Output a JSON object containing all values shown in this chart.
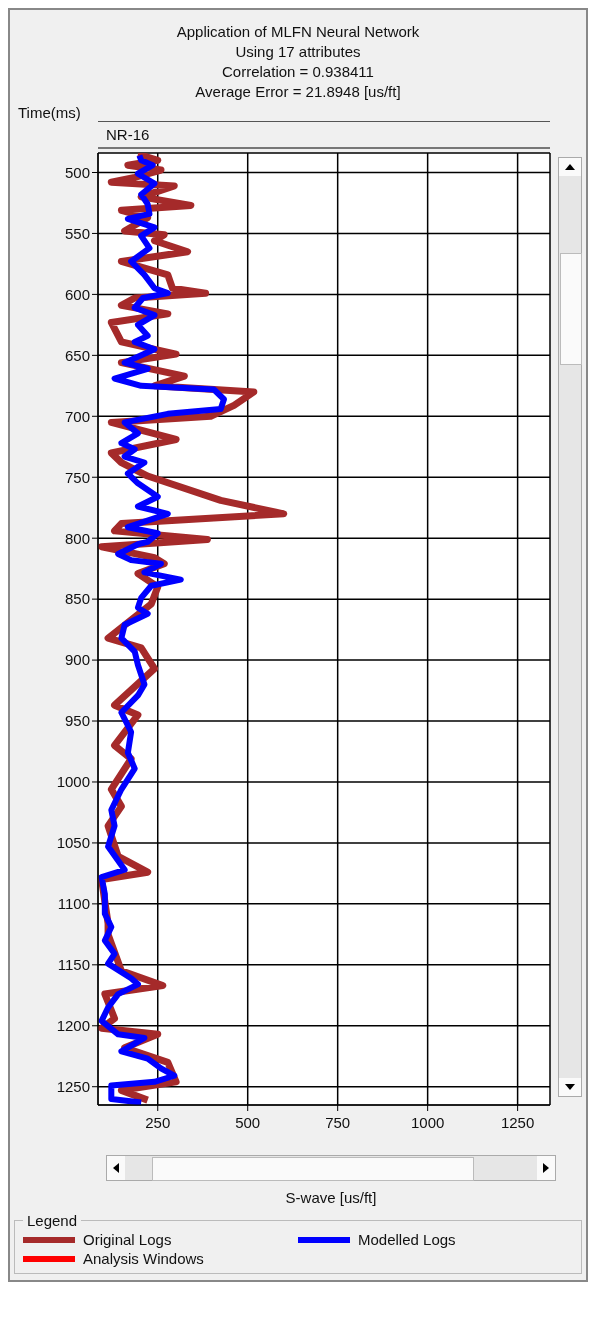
{
  "chart_data": {
    "type": "line",
    "title": "Application of MLFN Neural Network",
    "subtitle": "Using 17 attributes",
    "annotations": [
      "Correlation = 0.938411",
      "Average Error = 21.8948 [us/ft]",
      "NR-16"
    ],
    "xlabel": "S-wave [us/ft]",
    "ylabel": "Time(ms)",
    "legend_title": "Legend",
    "xlim": [
      84,
      1340
    ],
    "xticks": [
      250,
      500,
      750,
      1000,
      1250
    ],
    "ylim": [
      1265,
      484
    ],
    "yticks": [
      500,
      550,
      600,
      650,
      700,
      750,
      800,
      850,
      900,
      950,
      1000,
      1050,
      1100,
      1150,
      1200,
      1250
    ],
    "grid": true,
    "legend": "bottom",
    "marker": "none",
    "line_style": "solid",
    "series": [
      {
        "name": "Original Logs",
        "color": "#a52a2a",
        "x": [
          195,
          250,
          167,
          259,
          186,
          121,
          296,
          204,
          342,
          149,
          222,
          158,
          268,
          241,
          333,
          149,
          278,
          291,
          383,
          186,
          149,
          278,
          121,
          149,
          301,
          149,
          324,
          241,
          517,
          462,
          397,
          121,
          301,
          121,
          149,
          222,
          425,
          600,
          149,
          130,
          388,
          94,
          241,
          268,
          195,
          250,
          232,
          112,
          204,
          241,
          130,
          195,
          130,
          176,
          121,
          149,
          112,
          140,
          222,
          94,
          112,
          112,
          149,
          264,
          103,
          130,
          94,
          250,
          158,
          278,
          301,
          149,
          222
        ],
        "values": [
          485,
          490,
          494,
          498,
          504,
          508,
          511,
          520,
          527,
          531,
          537,
          548,
          551,
          556,
          565,
          573,
          584,
          595,
          599,
          603,
          609,
          616,
          623,
          639,
          649,
          656,
          667,
          675,
          680,
          691,
          700,
          705,
          719,
          730,
          738,
          749,
          769,
          780,
          788,
          794,
          801,
          807,
          816,
          821,
          829,
          840,
          854,
          882,
          890,
          907,
          937,
          945,
          970,
          981,
          1006,
          1020,
          1036,
          1061,
          1074,
          1080,
          1116,
          1125,
          1155,
          1167,
          1174,
          1194,
          1202,
          1207,
          1218,
          1230,
          1246,
          1253,
          1261
        ]
      },
      {
        "name": "Modelled Logs",
        "color": "#0000ff",
        "x": [
          199,
          204,
          236,
          195,
          241,
          204,
          222,
          227,
          167,
          241,
          204,
          227,
          176,
          213,
          241,
          278,
          209,
          186,
          241,
          195,
          222,
          186,
          241,
          158,
          222,
          130,
          204,
          406,
          434,
          425,
          278,
          158,
          195,
          149,
          186,
          158,
          213,
          167,
          195,
          250,
          195,
          278,
          167,
          250,
          222,
          195,
          140,
          176,
          259,
          213,
          314,
          232,
          204,
          195,
          222,
          158,
          149,
          186,
          195,
          213,
          195,
          149,
          176,
          167,
          186,
          149,
          121,
          130,
          112,
          158,
          94,
          103,
          103,
          121,
          103,
          130,
          112,
          176,
          195,
          140,
          112,
          94,
          140,
          213,
          149,
          222,
          259,
          296,
          241,
          121,
          121,
          204
        ],
        "values": [
          486,
          490,
          494,
          501,
          509,
          518,
          526,
          534,
          538,
          545,
          552,
          562,
          573,
          584,
          595,
          599,
          603,
          611,
          617,
          625,
          634,
          639,
          645,
          656,
          661,
          669,
          675,
          678,
          686,
          694,
          698,
          705,
          714,
          722,
          727,
          733,
          738,
          747,
          755,
          766,
          774,
          780,
          791,
          796,
          803,
          805,
          813,
          818,
          821,
          828,
          834,
          839,
          849,
          857,
          862,
          871,
          882,
          893,
          904,
          920,
          929,
          943,
          959,
          976,
          989,
          1006,
          1023,
          1036,
          1053,
          1072,
          1078,
          1092,
          1108,
          1119,
          1130,
          1141,
          1149,
          1161,
          1166,
          1174,
          1185,
          1196,
          1207,
          1210,
          1221,
          1227,
          1235,
          1241,
          1246,
          1249,
          1260,
          1263
        ]
      },
      {
        "name": "Analysis Windows",
        "color": "#ff0000"
      }
    ]
  }
}
